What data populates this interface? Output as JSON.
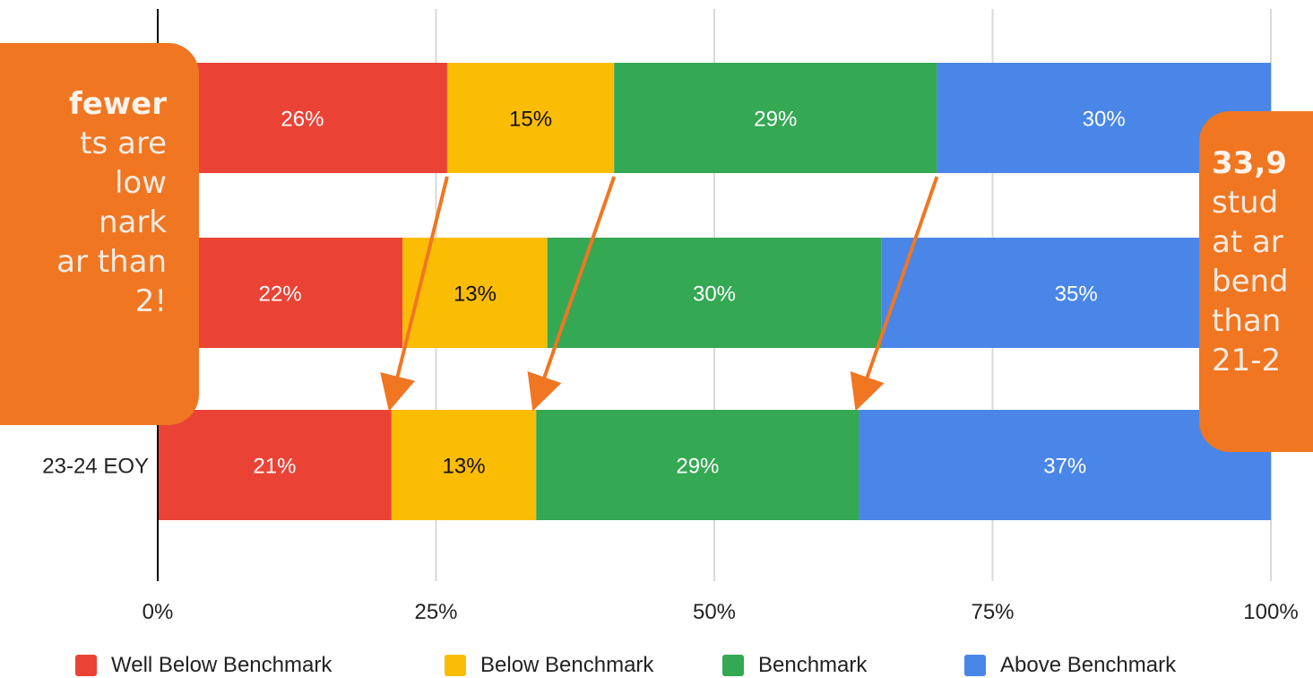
{
  "chart_data": {
    "type": "bar",
    "orientation": "horizontal",
    "stacked": true,
    "categories": [
      "",
      "",
      "23-24 EOY"
    ],
    "series": [
      {
        "name": "Well Below Benchmark",
        "color": "#ea4335",
        "values": [
          26,
          22,
          21
        ],
        "labels": [
          "26%",
          "22%",
          "21%"
        ]
      },
      {
        "name": "Below Benchmark",
        "color": "#fbbc04",
        "values": [
          15,
          13,
          13
        ],
        "labels": [
          "15%",
          "13%",
          "13%"
        ]
      },
      {
        "name": "Benchmark",
        "color": "#34a853",
        "values": [
          29,
          30,
          29
        ],
        "labels": [
          "29%",
          "30%",
          "29%"
        ]
      },
      {
        "name": "Above Benchmark",
        "color": "#4a86e8",
        "values": [
          30,
          35,
          37
        ],
        "labels": [
          "30%",
          "35%",
          "37%"
        ]
      }
    ],
    "xlim": [
      0,
      100
    ],
    "x_ticks": [
      "0%",
      "25%",
      "50%",
      "75%",
      "100%"
    ],
    "grid": true,
    "legend_position": "bottom"
  },
  "callouts": {
    "left": {
      "lines": [
        "fewer",
        "ts are",
        "low",
        "nark",
        "ar than",
        "2!"
      ],
      "color": "#f07622"
    },
    "right": {
      "lines": [
        "33,9",
        "stud",
        "at ar",
        "bend",
        "than",
        "21-2"
      ],
      "color": "#f07622"
    }
  },
  "colors": {
    "arrow": "#f07622",
    "axis": "#000000",
    "grid": "#d9d9d9"
  }
}
